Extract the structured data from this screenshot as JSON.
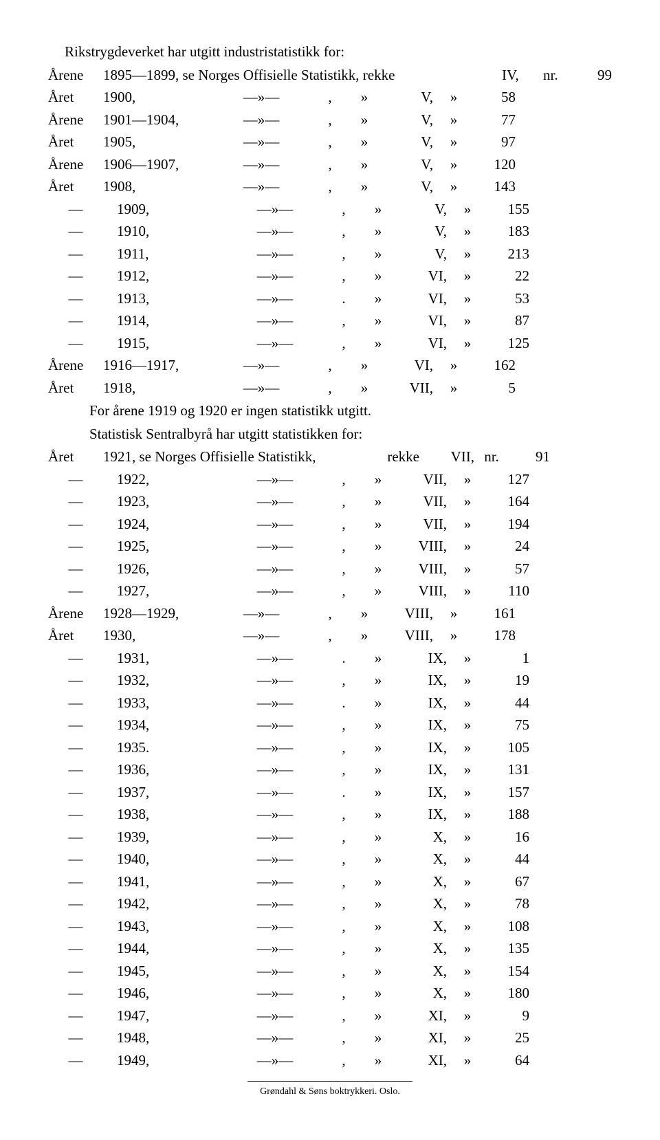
{
  "intro": "Rikstrygdeverket har utgitt industristatistikk for:",
  "headerRow": {
    "label": "Årene",
    "year": "1895—1899, se Norges Offisielle Statistikk, rekke",
    "series": "IV,",
    "nrWord": "nr.",
    "nr": "99"
  },
  "rows1": [
    {
      "label": "Året",
      "year": "1900,",
      "series": "V,",
      "nr": "58"
    },
    {
      "label": "Årene",
      "year": "1901—1904,",
      "series": "V,",
      "nr": "77"
    },
    {
      "label": "Året",
      "year": "1905,",
      "series": "V,",
      "nr": "97"
    },
    {
      "label": "Årene",
      "year": "1906—1907,",
      "series": "V,",
      "nr": "120"
    },
    {
      "label": "Året",
      "year": "1908,",
      "series": "V,",
      "nr": "143"
    },
    {
      "label": "—",
      "year": "1909,",
      "series": "V,",
      "nr": "155"
    },
    {
      "label": "—",
      "year": "1910,",
      "series": "V,",
      "nr": "183"
    },
    {
      "label": "—",
      "year": "1911,",
      "series": "V,",
      "nr": "213"
    },
    {
      "label": "—",
      "year": "1912,",
      "series": "VI,",
      "nr": "22"
    },
    {
      "label": "—",
      "year": "1913,",
      "punct": ".",
      "series": "VI,",
      "nr": "53"
    },
    {
      "label": "—",
      "year": "1914,",
      "series": "VI,",
      "nr": "87"
    },
    {
      "label": "—",
      "year": "1915,",
      "series": "VI,",
      "nr": "125"
    },
    {
      "label": "Årene",
      "year": "1916—1917,",
      "series": "VI,",
      "nr": "162"
    },
    {
      "label": "Året",
      "year": "1918,",
      "series": "VII,",
      "nr": "5"
    }
  ],
  "mid1": "For årene 1919 og 1920 er ingen statistikk utgitt.",
  "mid2": "Statistisk Sentralbyrå har utgitt statistikken for:",
  "headerRow2": {
    "label": "Året",
    "year": "1921, se Norges Offisielle Statistikk,",
    "rekke": "rekke",
    "series": "VII,",
    "nrWord": "nr.",
    "nr": "91"
  },
  "rows2": [
    {
      "label": "—",
      "year": "1922,",
      "series": "VII,",
      "nr": "127"
    },
    {
      "label": "—",
      "year": "1923,",
      "series": "VII,",
      "nr": "164"
    },
    {
      "label": "—",
      "year": "1924,",
      "series": "VII,",
      "nr": "194"
    },
    {
      "label": "—",
      "year": "1925,",
      "series": "VIII,",
      "nr": "24"
    },
    {
      "label": "—",
      "year": "1926,",
      "series": "VIII,",
      "nr": "57"
    },
    {
      "label": "—",
      "year": "1927,",
      "series": "VIII,",
      "nr": "110"
    },
    {
      "label": "Årene",
      "year": "1928—1929,",
      "series": "VIII,",
      "nr": "161"
    },
    {
      "label": "Året",
      "year": "1930,",
      "series": "VIII,",
      "nr": "178"
    },
    {
      "label": "—",
      "year": "1931,",
      "punct": ".",
      "series": "IX,",
      "nr": "1"
    },
    {
      "label": "—",
      "year": "1932,",
      "series": "IX,",
      "nr": "19"
    },
    {
      "label": "—",
      "year": "1933,",
      "punct": ".",
      "series": "IX,",
      "nr": "44"
    },
    {
      "label": "—",
      "year": "1934,",
      "series": "IX,",
      "nr": "75"
    },
    {
      "label": "—",
      "year": "1935.",
      "series": "IX,",
      "nr": "105"
    },
    {
      "label": "—",
      "year": "1936,",
      "series": "IX,",
      "nr": "131"
    },
    {
      "label": "—",
      "year": "1937,",
      "punct": ".",
      "series": "IX,",
      "nr": "157"
    },
    {
      "label": "—",
      "year": "1938,",
      "series": "IX,",
      "nr": "188"
    },
    {
      "label": "—",
      "year": "1939,",
      "series": "X,",
      "nr": "16"
    },
    {
      "label": "—",
      "year": "1940,",
      "series": "X,",
      "nr": "44"
    },
    {
      "label": "—",
      "year": "1941,",
      "series": "X,",
      "nr": "67"
    },
    {
      "label": "—",
      "year": "1942,",
      "series": "X,",
      "nr": "78"
    },
    {
      "label": "—",
      "year": "1943,",
      "series": "X,",
      "nr": "108"
    },
    {
      "label": "—",
      "year": "1944,",
      "series": "X,",
      "nr": "135"
    },
    {
      "label": "—",
      "year": "1945,",
      "series": "X,",
      "nr": "154"
    },
    {
      "label": "—",
      "year": "1946,",
      "series": "X,",
      "nr": "180"
    },
    {
      "label": "—",
      "year": "1947,",
      "series": "XI,",
      "nr": "9"
    },
    {
      "label": "—",
      "year": "1948,",
      "series": "XI,",
      "nr": "25"
    },
    {
      "label": "—",
      "year": "1949,",
      "series": "XI,",
      "nr": "64"
    }
  ],
  "dittoMark": "—»—",
  "quoteMark": "»",
  "commaMark": ",",
  "footer": "Grøndahl & Søns boktrykkeri. Oslo."
}
